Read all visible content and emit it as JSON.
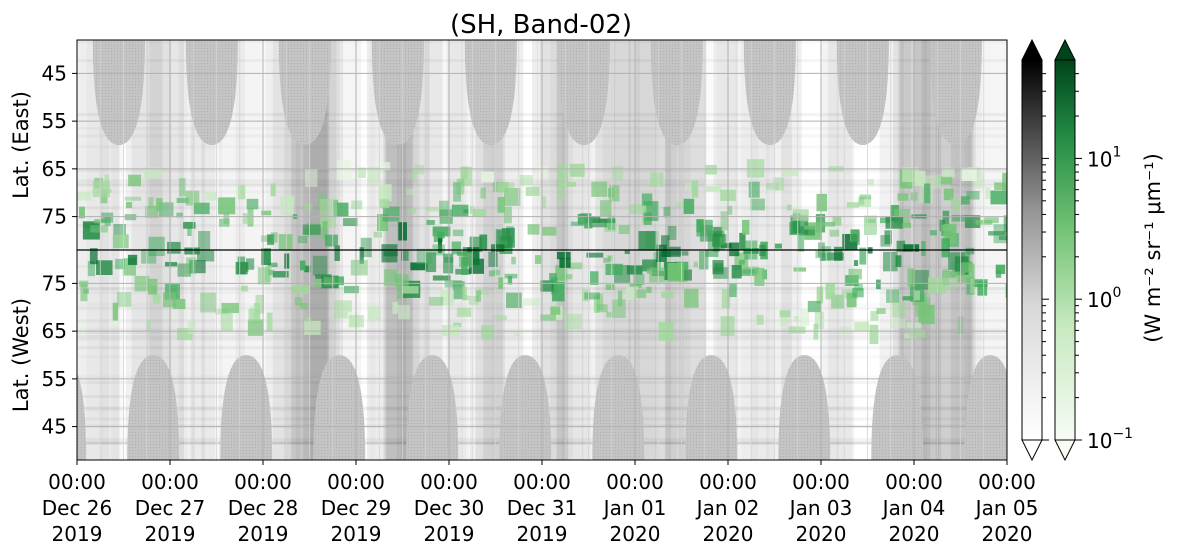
{
  "chart_data": {
    "type": "heatmap",
    "title": "(SH, Band-02)",
    "panels": [
      {
        "name": "east",
        "ylabel": "Lat. (East)",
        "y_ticks": [
          "45",
          "55",
          "65",
          "75"
        ],
        "ylim": [
          38,
          82
        ],
        "y_direction": "latitude increases downward toward centre line"
      },
      {
        "name": "west",
        "ylabel": "Lat. (West)",
        "y_ticks": [
          "75",
          "65",
          "55",
          "45"
        ],
        "ylim": [
          82,
          38
        ],
        "y_direction": "latitude decreases downward from centre line"
      }
    ],
    "x_ticks": [
      {
        "time": "00:00",
        "date": "Dec 26",
        "year": "2019"
      },
      {
        "time": "00:00",
        "date": "Dec 27",
        "year": "2019"
      },
      {
        "time": "00:00",
        "date": "Dec 28",
        "year": "2019"
      },
      {
        "time": "00:00",
        "date": "Dec 29",
        "year": "2019"
      },
      {
        "time": "00:00",
        "date": "Dec 30",
        "year": "2019"
      },
      {
        "time": "00:00",
        "date": "Dec 31",
        "year": "2019"
      },
      {
        "time": "00:00",
        "date": "Jan 01",
        "year": "2020"
      },
      {
        "time": "00:00",
        "date": "Jan 02",
        "year": "2020"
      },
      {
        "time": "00:00",
        "date": "Jan 03",
        "year": "2020"
      },
      {
        "time": "00:00",
        "date": "Jan 04",
        "year": "2020"
      },
      {
        "time": "00:00",
        "date": "Jan 05",
        "year": "2020"
      }
    ],
    "xlim": [
      "2019-12-26T00:00",
      "2020-01-05T00:00"
    ],
    "grid": true,
    "colorbars": [
      {
        "cmap": "Greys",
        "scale": "log",
        "range": [
          0.1,
          50
        ],
        "extend": "both"
      },
      {
        "cmap": "Greens",
        "scale": "log",
        "range": [
          0.1,
          50
        ],
        "extend": "both",
        "ticks": [
          {
            "base": "10",
            "exp": "1"
          },
          {
            "base": "10",
            "exp": "0"
          },
          {
            "base": "10",
            "exp": "−1"
          }
        ],
        "label": "(W m⁻² sr⁻¹ μm⁻¹)"
      }
    ],
    "colors": {
      "green_low": "#f7fcf5",
      "green_mid": "#74c476",
      "green_high": "#00441b",
      "grey_fill": "#c8c8c8"
    },
    "features": {
      "no_data_lobes": "grey half-ellipse gaps repeating ~every 1 day in each panel, tips reaching ~60° lat",
      "green_band": "emission band concentrated between ~62° and 82° latitude around the centre line, values ~0.3–10"
    }
  }
}
